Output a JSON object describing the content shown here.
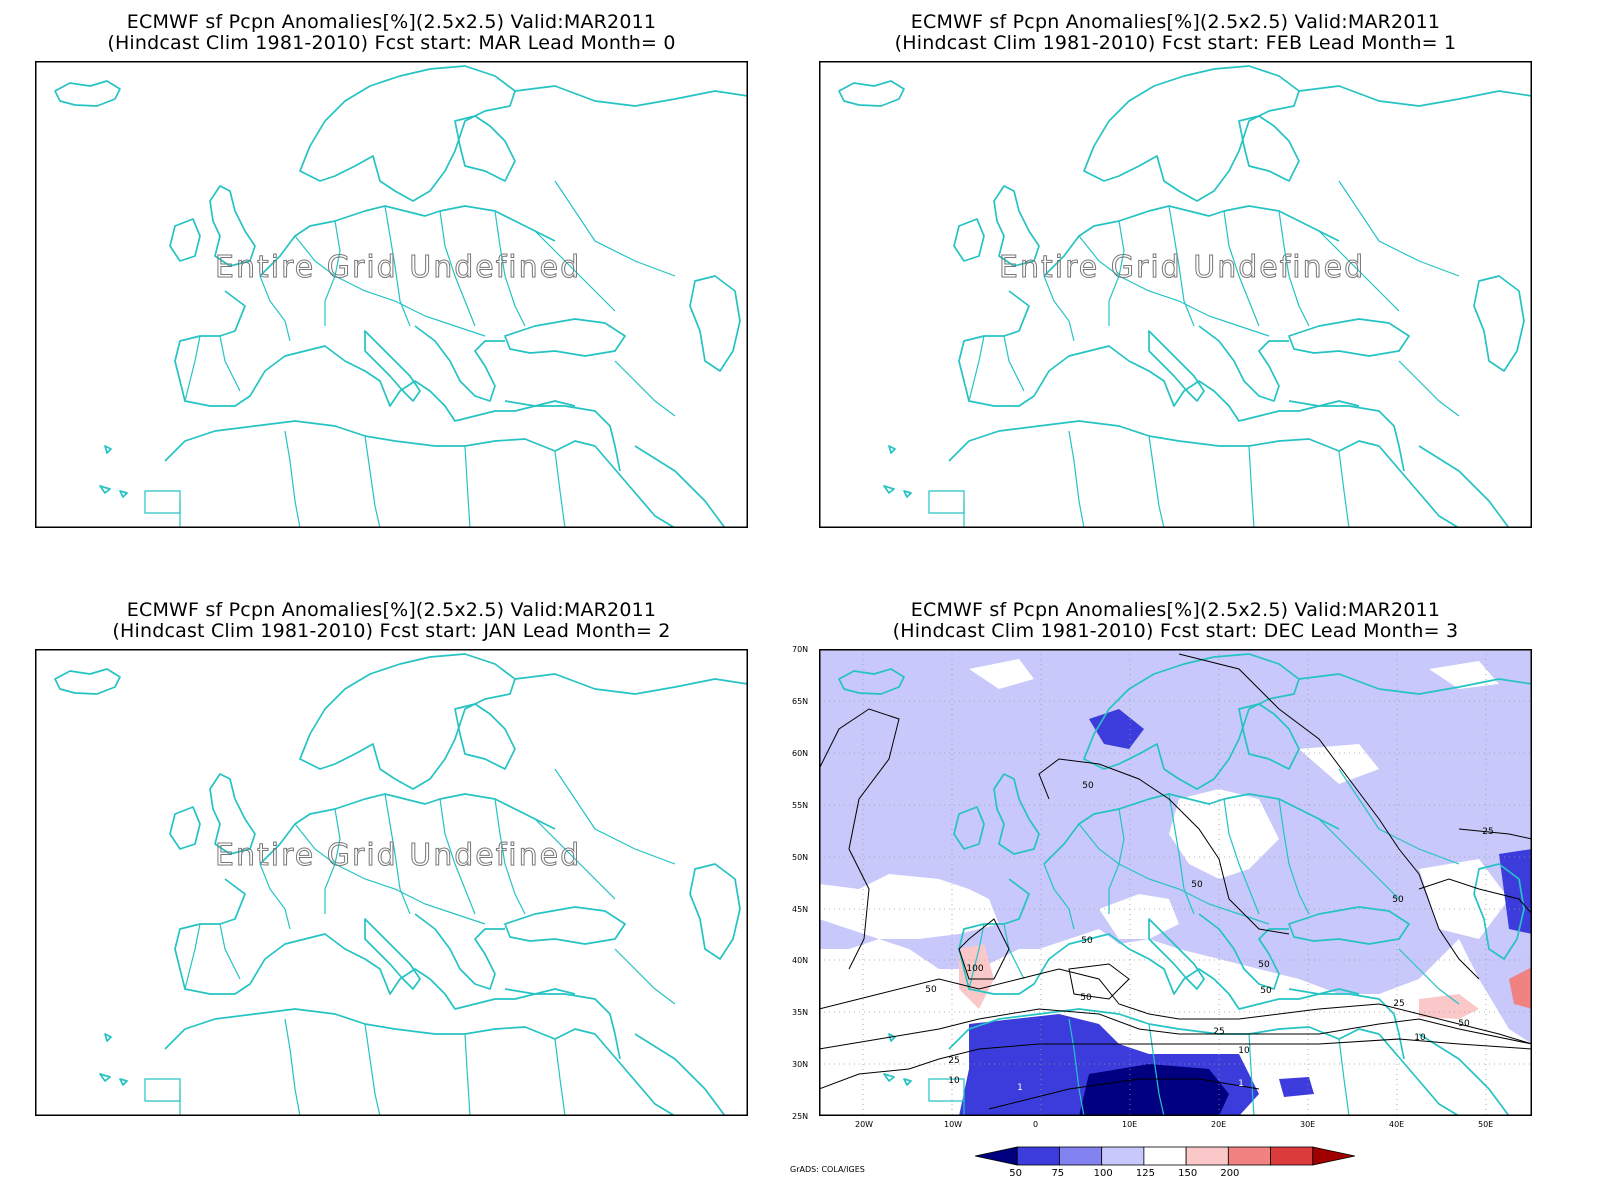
{
  "panels": [
    {
      "title_line1": "ECMWF sf Pcpn Anomalies[%](2.5x2.5) Valid:MAR2011",
      "title_line2": "(Hindcast Clim 1981-2010) Fcst start: MAR  Lead Month= 0",
      "message": "Entire Grid Undefined"
    },
    {
      "title_line1": "ECMWF sf Pcpn Anomalies[%](2.5x2.5) Valid:MAR2011",
      "title_line2": "(Hindcast Clim 1981-2010) Fcst start: FEB  Lead Month= 1",
      "message": "Entire Grid Undefined"
    },
    {
      "title_line1": "ECMWF sf Pcpn Anomalies[%](2.5x2.5) Valid:MAR2011",
      "title_line2": "(Hindcast Clim 1981-2010) Fcst start: JAN  Lead Month= 2",
      "message": "Entire Grid Undefined"
    },
    {
      "title_line1": "ECMWF sf Pcpn Anomalies[%](2.5x2.5) Valid:MAR2011",
      "title_line2": "(Hindcast Clim 1981-2010) Fcst start: DEC  Lead Month= 3",
      "message": ""
    }
  ],
  "lat_labels": [
    "70N",
    "65N",
    "60N",
    "55N",
    "50N",
    "45N",
    "40N",
    "35N",
    "30N",
    "25N"
  ],
  "lon_labels": [
    "20W",
    "10W",
    "0",
    "10E",
    "20E",
    "30E",
    "40E",
    "50E"
  ],
  "contour_labels": [
    "50",
    "50",
    "25",
    "50",
    "50",
    "50",
    "50",
    "100",
    "50",
    "50",
    "25",
    "10",
    "25",
    "50",
    "10",
    "25",
    "10",
    "1",
    "1"
  ],
  "colorbar": {
    "labels": [
      "50",
      "75",
      "100",
      "125",
      "150",
      "200"
    ],
    "colors": [
      "#000080",
      "#3c3cdc",
      "#8282f0",
      "#c8c8fa",
      "#ffffff",
      "#fac8c8",
      "#f08282",
      "#dc3c3c",
      "#a00000"
    ]
  },
  "footer": "GrADS: COLA/IGES",
  "map_colors": {
    "coast": "#25c3c3",
    "frame": "#000000"
  }
}
